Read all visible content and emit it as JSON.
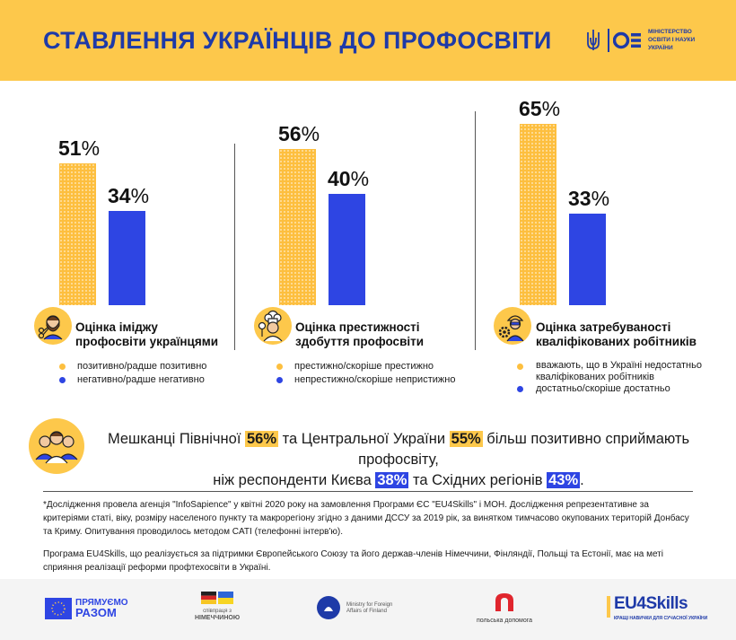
{
  "header": {
    "title": "СТАВЛЕННЯ УКРАЇНЦІВ ДО ПРОФОСВІТИ",
    "ministry_line1": "МІНІСТЕРСТВО",
    "ministry_line2": "ОСВІТИ І НАУКИ",
    "ministry_line3": "УКРАЇНИ"
  },
  "colors": {
    "yellow": "#fdbf3f",
    "blue": "#2e45e3",
    "header_bg": "#fdc84b",
    "title": "#1e3aa8"
  },
  "chart_data": [
    {
      "type": "bar",
      "title": "Оцінка іміджу профосвіти українцями",
      "categories": [
        "позитивно/радше позитивно",
        "негативно/радше негативно"
      ],
      "values": [
        51,
        34
      ],
      "labels": [
        "51",
        "34"
      ],
      "unit": "%",
      "colors": [
        "#fdbf3f",
        "#2e45e3"
      ],
      "legend": [
        {
          "label": "позитивно/радше позитивно",
          "color": "yellow"
        },
        {
          "label": "негативно/радше негативно",
          "color": "blue"
        }
      ],
      "icon": "barber-icon"
    },
    {
      "type": "bar",
      "title": "Оцінка престижності здобуття профосвіти",
      "categories": [
        "престижно/скоріше престижно",
        "непрестижно/скоріше непристижно"
      ],
      "values": [
        56,
        40
      ],
      "labels": [
        "56",
        "40"
      ],
      "unit": "%",
      "colors": [
        "#fdbf3f",
        "#2e45e3"
      ],
      "legend": [
        {
          "label": "престижно/скоріше престижно",
          "color": "yellow"
        },
        {
          "label": "непрестижно/скоріше непристижно",
          "color": "blue"
        }
      ],
      "icon": "chef-icon"
    },
    {
      "type": "bar",
      "title": "Оцінка затребуваності кваліфікованих робітників",
      "categories": [
        "вважають, що в Україні недостатньо кваліфікованих робітників",
        "достатньо/скоріше достатньо"
      ],
      "values": [
        65,
        33
      ],
      "labels": [
        "65",
        "33"
      ],
      "unit": "%",
      "colors": [
        "#fdbf3f",
        "#2e45e3"
      ],
      "legend": [
        {
          "label": "вважають, що в Україні недостатньо кваліфікованих робітників",
          "color": "yellow"
        },
        {
          "label": "достатньо/скоріше достатньо",
          "color": "blue"
        }
      ],
      "icon": "worker-icon"
    }
  ],
  "panels": [
    {
      "title_line1": "Оцінка іміджу",
      "title_line2": "профосвіти українцями"
    },
    {
      "title_line1": "Оцінка престижності",
      "title_line2": "здобуття профосвіти"
    },
    {
      "title_line1": "Оцінка затребуваності",
      "title_line2": "кваліфікованих робітників"
    }
  ],
  "summary": {
    "line1_a": "Мешканці Північної ",
    "north": "56%",
    "line1_b": " та Центральної України ",
    "central": "55%",
    "line1_c": " більш позитивно сприймають профосвіту,",
    "line2_a": "ніж респонденти Києва ",
    "kyiv": "38%",
    "line2_b": " та Східних регіонів ",
    "east": "43%",
    "line2_c": "."
  },
  "footnote1": "*Дослідження провела агенція \"InfoSapience\" у квітні 2020 року на замовлення Програми ЄС \"EU4Skills\" і МОН. Дослідження репрезентативне за критеріями статі, віку, розміру населеного пункту та макрорегіону згідно з даними ДССУ за 2019 рік, за винятком тимчасово окупованих територій Донбасу та Криму. Опитування проводилось методом CATI (телефонні інтерв'ю).",
  "footnote2": "Програма EU4Skills, що реалізується за підтримки Європейського Союзу та його держав-членів Німеччини, Фінляндії, Польщі та Естонії, має на меті сприяння реалізації реформи профтехосвіти в Україні.",
  "logos": {
    "eu_line1": "ПРЯМУЄМО",
    "eu_line2": "РАЗОМ",
    "germany_line1": "співпраця з",
    "germany_line2": "НІМЕЧЧИНОЮ",
    "finland_line1": "Ministry for Foreign",
    "finland_line2": "Affairs of Finland",
    "poland": "польська допомога",
    "eu4skills": "EU4Skills",
    "eu4skills_tag": "КРАЩІ НАВИЧКИ ДЛЯ СУЧАСНОЇ УКРАЇНИ"
  }
}
